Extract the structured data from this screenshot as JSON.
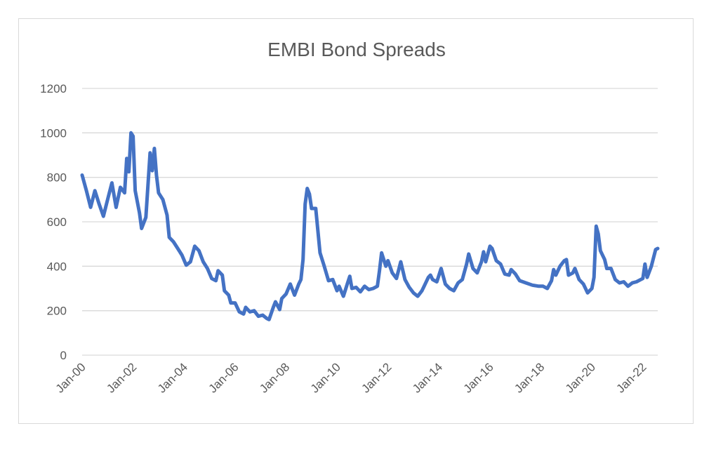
{
  "chart_data": {
    "type": "line",
    "title": "EMBI Bond Spreads",
    "xlabel": "",
    "ylabel": "",
    "ylim": [
      0,
      1200
    ],
    "yticks": [
      0,
      200,
      400,
      600,
      800,
      1000,
      1200
    ],
    "xlim": [
      "2000-01",
      "2022-08"
    ],
    "xtick_labels": [
      "Jan-00",
      "Jan-02",
      "Jan-04",
      "Jan-06",
      "Jan-08",
      "Jan-10",
      "Jan-12",
      "Jan-14",
      "Jan-16",
      "Jan-18",
      "Jan-20",
      "Jan-22"
    ],
    "grid": true,
    "legend": "none",
    "series": [
      {
        "color": "#4472c4",
        "points": [
          [
            "2000-01",
            810
          ],
          [
            "2000-03",
            740
          ],
          [
            "2000-05",
            665
          ],
          [
            "2000-07",
            740
          ],
          [
            "2000-09",
            680
          ],
          [
            "2000-11",
            625
          ],
          [
            "2001-01",
            700
          ],
          [
            "2001-03",
            775
          ],
          [
            "2001-05",
            665
          ],
          [
            "2001-07",
            755
          ],
          [
            "2001-09",
            730
          ],
          [
            "2001-10",
            885
          ],
          [
            "2001-11",
            825
          ],
          [
            "2001-12",
            1000
          ],
          [
            "2002-01",
            985
          ],
          [
            "2002-02",
            740
          ],
          [
            "2002-04",
            640
          ],
          [
            "2002-05",
            570
          ],
          [
            "2002-07",
            620
          ],
          [
            "2002-09",
            910
          ],
          [
            "2002-10",
            830
          ],
          [
            "2002-11",
            930
          ],
          [
            "2002-12",
            810
          ],
          [
            "2003-01",
            730
          ],
          [
            "2003-03",
            700
          ],
          [
            "2003-05",
            630
          ],
          [
            "2003-06",
            530
          ],
          [
            "2003-08",
            510
          ],
          [
            "2003-10",
            480
          ],
          [
            "2003-12",
            450
          ],
          [
            "2004-02",
            405
          ],
          [
            "2004-04",
            420
          ],
          [
            "2004-06",
            490
          ],
          [
            "2004-08",
            470
          ],
          [
            "2004-10",
            420
          ],
          [
            "2004-12",
            390
          ],
          [
            "2005-02",
            345
          ],
          [
            "2005-04",
            335
          ],
          [
            "2005-05",
            380
          ],
          [
            "2005-07",
            360
          ],
          [
            "2005-08",
            290
          ],
          [
            "2005-10",
            270
          ],
          [
            "2005-11",
            235
          ],
          [
            "2006-01",
            235
          ],
          [
            "2006-03",
            195
          ],
          [
            "2006-05",
            185
          ],
          [
            "2006-06",
            215
          ],
          [
            "2006-08",
            195
          ],
          [
            "2006-10",
            200
          ],
          [
            "2006-12",
            175
          ],
          [
            "2007-02",
            180
          ],
          [
            "2007-04",
            165
          ],
          [
            "2007-05",
            160
          ],
          [
            "2007-07",
            215
          ],
          [
            "2007-08",
            240
          ],
          [
            "2007-10",
            205
          ],
          [
            "2007-11",
            255
          ],
          [
            "2008-01",
            275
          ],
          [
            "2008-03",
            320
          ],
          [
            "2008-05",
            270
          ],
          [
            "2008-07",
            320
          ],
          [
            "2008-08",
            340
          ],
          [
            "2008-09",
            430
          ],
          [
            "2008-10",
            680
          ],
          [
            "2008-11",
            750
          ],
          [
            "2008-12",
            725
          ],
          [
            "2009-01",
            660
          ],
          [
            "2009-03",
            660
          ],
          [
            "2009-05",
            460
          ],
          [
            "2009-07",
            400
          ],
          [
            "2009-09",
            335
          ],
          [
            "2009-11",
            340
          ],
          [
            "2010-01",
            290
          ],
          [
            "2010-02",
            310
          ],
          [
            "2010-04",
            265
          ],
          [
            "2010-06",
            325
          ],
          [
            "2010-07",
            355
          ],
          [
            "2010-08",
            300
          ],
          [
            "2010-10",
            305
          ],
          [
            "2010-12",
            285
          ],
          [
            "2011-02",
            310
          ],
          [
            "2011-04",
            295
          ],
          [
            "2011-06",
            300
          ],
          [
            "2011-08",
            310
          ],
          [
            "2011-09",
            380
          ],
          [
            "2011-10",
            460
          ],
          [
            "2011-12",
            400
          ],
          [
            "2012-01",
            425
          ],
          [
            "2012-03",
            370
          ],
          [
            "2012-05",
            345
          ],
          [
            "2012-07",
            420
          ],
          [
            "2012-09",
            340
          ],
          [
            "2012-11",
            305
          ],
          [
            "2013-01",
            280
          ],
          [
            "2013-03",
            265
          ],
          [
            "2013-05",
            290
          ],
          [
            "2013-06",
            310
          ],
          [
            "2013-08",
            350
          ],
          [
            "2013-09",
            360
          ],
          [
            "2013-10",
            340
          ],
          [
            "2013-12",
            330
          ],
          [
            "2014-02",
            390
          ],
          [
            "2014-04",
            320
          ],
          [
            "2014-06",
            300
          ],
          [
            "2014-08",
            290
          ],
          [
            "2014-10",
            325
          ],
          [
            "2014-12",
            340
          ],
          [
            "2015-02",
            410
          ],
          [
            "2015-03",
            455
          ],
          [
            "2015-05",
            390
          ],
          [
            "2015-07",
            370
          ],
          [
            "2015-09",
            420
          ],
          [
            "2015-10",
            465
          ],
          [
            "2015-11",
            420
          ],
          [
            "2016-01",
            490
          ],
          [
            "2016-02",
            480
          ],
          [
            "2016-04",
            425
          ],
          [
            "2016-06",
            410
          ],
          [
            "2016-08",
            365
          ],
          [
            "2016-10",
            360
          ],
          [
            "2016-11",
            385
          ],
          [
            "2017-01",
            365
          ],
          [
            "2017-03",
            335
          ],
          [
            "2017-06",
            325
          ],
          [
            "2017-09",
            315
          ],
          [
            "2017-12",
            310
          ],
          [
            "2018-02",
            310
          ],
          [
            "2018-04",
            300
          ],
          [
            "2018-06",
            335
          ],
          [
            "2018-07",
            385
          ],
          [
            "2018-08",
            360
          ],
          [
            "2018-10",
            400
          ],
          [
            "2018-12",
            425
          ],
          [
            "2019-01",
            430
          ],
          [
            "2019-02",
            360
          ],
          [
            "2019-04",
            370
          ],
          [
            "2019-05",
            390
          ],
          [
            "2019-07",
            340
          ],
          [
            "2019-09",
            320
          ],
          [
            "2019-11",
            280
          ],
          [
            "2020-01",
            300
          ],
          [
            "2020-02",
            350
          ],
          [
            "2020-03",
            580
          ],
          [
            "2020-04",
            545
          ],
          [
            "2020-05",
            470
          ],
          [
            "2020-07",
            430
          ],
          [
            "2020-08",
            390
          ],
          [
            "2020-10",
            390
          ],
          [
            "2020-12",
            340
          ],
          [
            "2021-02",
            325
          ],
          [
            "2021-04",
            330
          ],
          [
            "2021-06",
            310
          ],
          [
            "2021-08",
            325
          ],
          [
            "2021-10",
            330
          ],
          [
            "2021-12",
            340
          ],
          [
            "2022-01",
            345
          ],
          [
            "2022-02",
            410
          ],
          [
            "2022-03",
            350
          ],
          [
            "2022-05",
            400
          ],
          [
            "2022-07",
            475
          ],
          [
            "2022-08",
            480
          ]
        ]
      }
    ]
  }
}
